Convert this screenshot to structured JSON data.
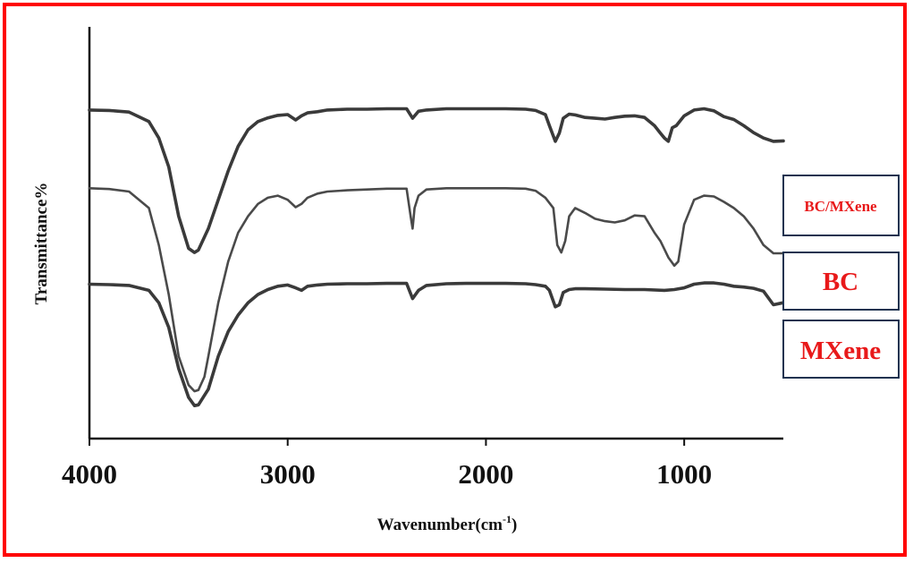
{
  "chart_data": {
    "type": "line",
    "xlabel": "Wavenumber(cm",
    "xlabel_sup": "-1",
    "xlabel_close": ")",
    "ylabel": "Transmittance%",
    "xlim": [
      4000,
      500
    ],
    "x_reversed": true,
    "ylim": [
      0,
      1
    ],
    "grid": false,
    "legend_placement": "right",
    "ticks": [
      "4000",
      "3000",
      "2000",
      "1000"
    ],
    "tick_values": [
      4000,
      3000,
      2000,
      1000
    ],
    "series": [
      {
        "name": "BC/MXene",
        "color": "#3a3a3a",
        "x": [
          4000,
          3900,
          3800,
          3700,
          3650,
          3600,
          3550,
          3500,
          3470,
          3450,
          3400,
          3350,
          3300,
          3250,
          3200,
          3150,
          3100,
          3050,
          3000,
          2960,
          2930,
          2900,
          2850,
          2800,
          2700,
          2600,
          2500,
          2400,
          2370,
          2340,
          2300,
          2200,
          2100,
          2000,
          1900,
          1800,
          1750,
          1700,
          1680,
          1650,
          1630,
          1610,
          1580,
          1550,
          1500,
          1450,
          1400,
          1350,
          1300,
          1250,
          1200,
          1150,
          1120,
          1100,
          1080,
          1060,
          1040,
          1000,
          950,
          900,
          850,
          800,
          750,
          700,
          650,
          600,
          550,
          500
        ],
        "y": [
          0.798,
          0.797,
          0.793,
          0.77,
          0.73,
          0.66,
          0.54,
          0.462,
          0.452,
          0.458,
          0.51,
          0.58,
          0.65,
          0.71,
          0.75,
          0.77,
          0.779,
          0.785,
          0.787,
          0.774,
          0.784,
          0.791,
          0.794,
          0.798,
          0.8,
          0.8,
          0.801,
          0.801,
          0.778,
          0.795,
          0.798,
          0.801,
          0.801,
          0.801,
          0.801,
          0.8,
          0.797,
          0.787,
          0.76,
          0.722,
          0.742,
          0.778,
          0.788,
          0.786,
          0.78,
          0.778,
          0.776,
          0.78,
          0.783,
          0.784,
          0.78,
          0.76,
          0.742,
          0.73,
          0.722,
          0.755,
          0.76,
          0.784,
          0.798,
          0.801,
          0.796,
          0.782,
          0.775,
          0.76,
          0.743,
          0.73,
          0.722,
          0.723
        ]
      },
      {
        "name": "BC",
        "color": "#4a4a4a",
        "x": [
          4000,
          3900,
          3800,
          3700,
          3650,
          3600,
          3550,
          3500,
          3470,
          3450,
          3420,
          3400,
          3350,
          3300,
          3250,
          3200,
          3150,
          3100,
          3050,
          3000,
          2960,
          2930,
          2900,
          2850,
          2800,
          2700,
          2600,
          2500,
          2400,
          2380,
          2370,
          2360,
          2340,
          2300,
          2200,
          2100,
          2000,
          1900,
          1800,
          1750,
          1700,
          1660,
          1640,
          1620,
          1600,
          1580,
          1550,
          1500,
          1450,
          1400,
          1350,
          1300,
          1250,
          1200,
          1150,
          1120,
          1100,
          1080,
          1050,
          1030,
          1000,
          950,
          900,
          850,
          800,
          750,
          700,
          650,
          600,
          550,
          500
        ],
        "y": [
          0.608,
          0.606,
          0.6,
          0.56,
          0.47,
          0.35,
          0.2,
          0.13,
          0.115,
          0.118,
          0.15,
          0.2,
          0.33,
          0.43,
          0.5,
          0.54,
          0.57,
          0.585,
          0.59,
          0.58,
          0.562,
          0.57,
          0.585,
          0.595,
          0.6,
          0.603,
          0.605,
          0.607,
          0.607,
          0.54,
          0.51,
          0.56,
          0.59,
          0.605,
          0.608,
          0.608,
          0.608,
          0.608,
          0.607,
          0.602,
          0.585,
          0.56,
          0.47,
          0.452,
          0.48,
          0.54,
          0.56,
          0.548,
          0.534,
          0.528,
          0.525,
          0.53,
          0.542,
          0.54,
          0.5,
          0.48,
          0.46,
          0.44,
          0.42,
          0.43,
          0.52,
          0.58,
          0.59,
          0.588,
          0.575,
          0.56,
          0.54,
          0.51,
          0.47,
          0.45,
          0.45
        ]
      },
      {
        "name": "MXene",
        "color": "#3a3a3a",
        "x": [
          4000,
          3900,
          3800,
          3700,
          3650,
          3600,
          3550,
          3500,
          3470,
          3450,
          3400,
          3350,
          3300,
          3250,
          3200,
          3150,
          3100,
          3050,
          3000,
          2960,
          2930,
          2900,
          2850,
          2800,
          2700,
          2600,
          2500,
          2400,
          2370,
          2340,
          2300,
          2200,
          2100,
          2000,
          1900,
          1800,
          1750,
          1700,
          1680,
          1650,
          1630,
          1610,
          1580,
          1550,
          1500,
          1400,
          1300,
          1200,
          1100,
          1050,
          1000,
          950,
          900,
          850,
          800,
          750,
          700,
          650,
          600,
          550,
          500
        ],
        "y": [
          0.375,
          0.374,
          0.372,
          0.36,
          0.33,
          0.27,
          0.17,
          0.1,
          0.08,
          0.082,
          0.12,
          0.2,
          0.26,
          0.3,
          0.33,
          0.35,
          0.362,
          0.37,
          0.373,
          0.366,
          0.36,
          0.37,
          0.373,
          0.375,
          0.376,
          0.376,
          0.377,
          0.377,
          0.34,
          0.36,
          0.372,
          0.376,
          0.377,
          0.377,
          0.377,
          0.376,
          0.374,
          0.37,
          0.36,
          0.32,
          0.325,
          0.355,
          0.362,
          0.364,
          0.364,
          0.363,
          0.362,
          0.362,
          0.36,
          0.362,
          0.366,
          0.375,
          0.378,
          0.378,
          0.375,
          0.37,
          0.368,
          0.365,
          0.358,
          0.325,
          0.33
        ]
      }
    ]
  }
}
